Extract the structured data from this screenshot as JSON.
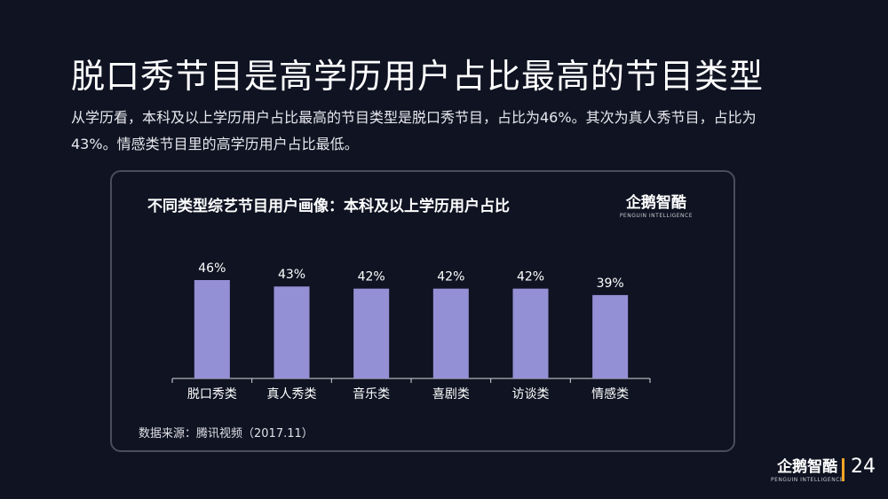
{
  "title": "脱口秀节目是高学历用户占比最高的节目类型",
  "description": "从学历看，本科及以上学历用户占比最高的节目类型是脱口秀节目，占比为46%。其次为真人秀节目，占比为43%。情感类节目里的高学历用户占比最低。",
  "brand": {
    "name": "企鹅智酷",
    "subtitle": "PENGUIN INTELLIGENCE"
  },
  "source": "数据来源：腾讯视频（2017.11）",
  "page_number": "24",
  "colors": {
    "background": "#0f1322",
    "bar": "#9490d6",
    "accent": "#f5a623"
  },
  "chart_data": {
    "type": "bar",
    "title": "不同类型综艺节目用户画像：本科及以上学历用户占比",
    "categories": [
      "脱口秀类",
      "真人秀类",
      "音乐类",
      "喜剧类",
      "访谈类",
      "情感类"
    ],
    "values": [
      46,
      43,
      42,
      42,
      42,
      39
    ],
    "value_labels": [
      "46%",
      "43%",
      "42%",
      "42%",
      "42%",
      "39%"
    ],
    "unit": "%",
    "ylim": [
      0,
      50
    ],
    "grid": false,
    "legend": "none"
  }
}
